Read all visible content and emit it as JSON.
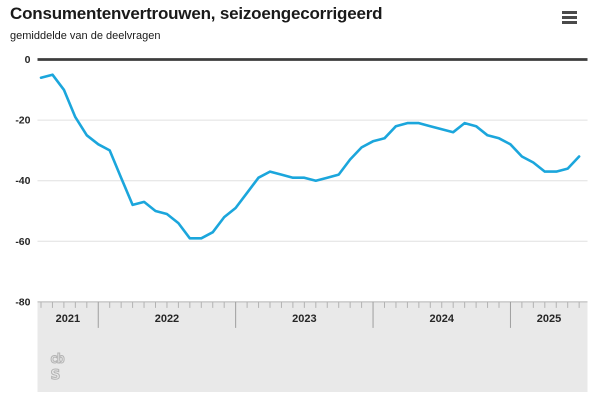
{
  "header": {
    "title": "Consumentenvertrouwen, seizoengecorrigeerd",
    "subtitle": "gemiddelde van de deelvragen"
  },
  "branding": {
    "logo_top": "cb",
    "logo_bottom": "s",
    "logo_name": "cbs-logo"
  },
  "chart_data": {
    "type": "line",
    "title": "Consumentenvertrouwen, seizoengecorrigeerd",
    "subtitle": "gemiddelde van de deelvragen",
    "legend": "none",
    "grid": "horizontal",
    "line_color": "#1ba6dc",
    "ylim": [
      -80,
      0
    ],
    "yticks": [
      0,
      -20,
      -40,
      -60,
      -80
    ],
    "x_year_labels": [
      "2021",
      "2022",
      "2023",
      "2024",
      "2025"
    ],
    "x": [
      "2021-08",
      "2021-09",
      "2021-10",
      "2021-11",
      "2021-12",
      "2022-01",
      "2022-02",
      "2022-03",
      "2022-04",
      "2022-05",
      "2022-06",
      "2022-07",
      "2022-08",
      "2022-09",
      "2022-10",
      "2022-11",
      "2022-12",
      "2023-01",
      "2023-02",
      "2023-03",
      "2023-04",
      "2023-05",
      "2023-06",
      "2023-07",
      "2023-08",
      "2023-09",
      "2023-10",
      "2023-11",
      "2023-12",
      "2024-01",
      "2024-02",
      "2024-03",
      "2024-04",
      "2024-05",
      "2024-06",
      "2024-07",
      "2024-08",
      "2024-09",
      "2024-10",
      "2024-11",
      "2024-12",
      "2025-01",
      "2025-02",
      "2025-03",
      "2025-04",
      "2025-05",
      "2025-06",
      "2025-07"
    ],
    "values": [
      -6,
      -5,
      -10,
      -19,
      -25,
      -28,
      -30,
      -39,
      -48,
      -47,
      -50,
      -51,
      -54,
      -59,
      -59,
      -57,
      -52,
      -49,
      -44,
      -39,
      -37,
      -38,
      -39,
      -39,
      -40,
      -39,
      -38,
      -33,
      -29,
      -27,
      -26,
      -22,
      -21,
      -21,
      -22,
      -23,
      -24,
      -21,
      -22,
      -25,
      -26,
      -28,
      -32,
      -34,
      -37,
      -37,
      -36,
      -32
    ],
    "series": [
      {
        "name": "Consumentenvertrouwen, seizoengecorrigeerd"
      }
    ]
  }
}
